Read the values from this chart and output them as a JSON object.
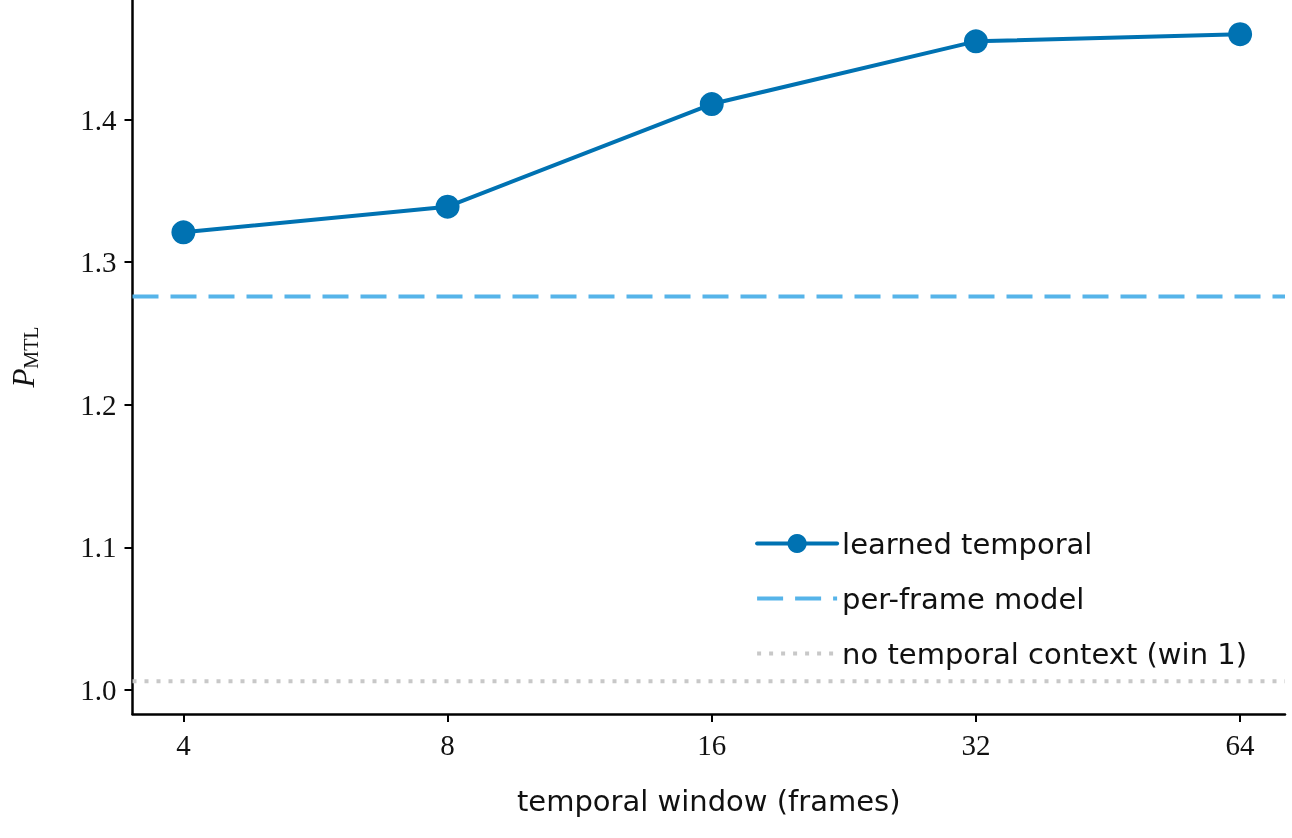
{
  "chart_data": {
    "type": "line",
    "xlabel": "temporal window (frames)",
    "ylabel": "P$_{MTL}$",
    "x": [
      4,
      8,
      16,
      32,
      64
    ],
    "series": [
      {
        "name": "learned temporal",
        "color": "#0072b2",
        "values": [
          1.321,
          1.339,
          1.411,
          1.455,
          1.46
        ]
      }
    ],
    "ref_lines": [
      {
        "axis": "y",
        "value": 1.276,
        "label": "per-frame model",
        "color": "#56b4e9",
        "line_style": "dashed"
      },
      {
        "axis": "y",
        "value": 1.006,
        "label": "no temporal context (win 1)",
        "color": "#c8c8c8",
        "line_style": "dotted"
      }
    ],
    "log": "x",
    "xlim": [
      3.5,
      72
    ],
    "xticks": [
      4,
      8,
      16,
      32,
      64
    ],
    "ylim": [
      0.983,
      1.484
    ],
    "yticks": [
      {
        "value": 1.0,
        "label": "1.0"
      },
      1.1,
      1.2,
      1.3,
      1.4
    ],
    "marker": "circle",
    "line_style": "solid",
    "grid": false,
    "legend": "bottom right"
  }
}
